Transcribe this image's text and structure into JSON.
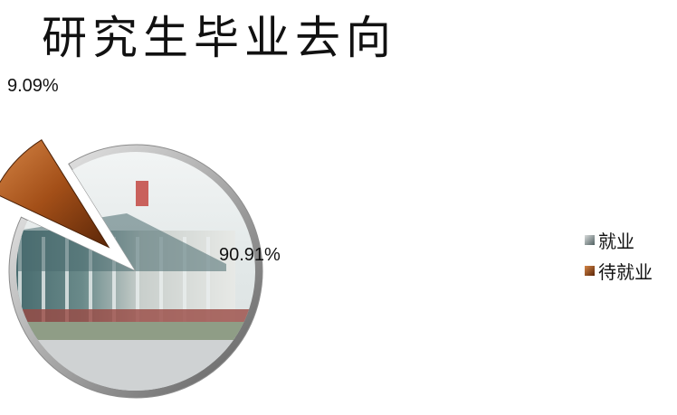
{
  "title": "研究生毕业去向",
  "chart_data": {
    "type": "pie",
    "title": "研究生毕业去向",
    "categories": [
      "就业",
      "待就业"
    ],
    "values": [
      90.91,
      9.09
    ],
    "data_labels": [
      "90.91%",
      "9.09%"
    ],
    "exploded": [
      false,
      true
    ],
    "legend_position": "right",
    "colors": {
      "就业": "#7a8a88",
      "待就业": "#b45a1c"
    }
  }
}
